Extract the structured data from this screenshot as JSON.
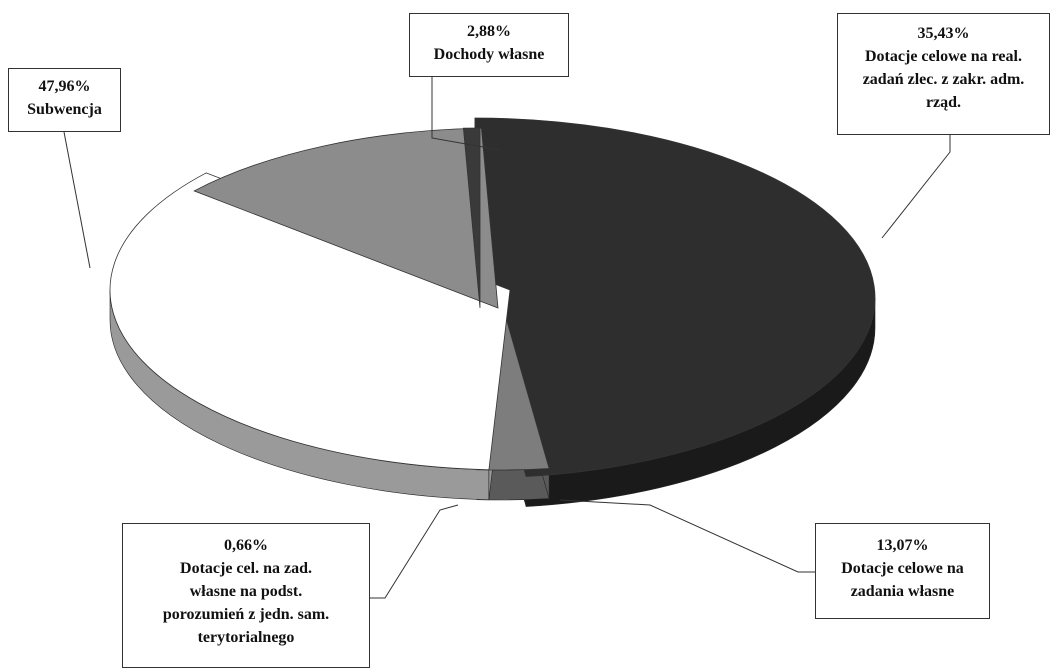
{
  "chart_data": {
    "type": "pie",
    "style": "3d-exploded",
    "title": "",
    "slices": [
      {
        "key": "subwencja",
        "value": 47.96,
        "percent_label": "47,96%",
        "label_lines": [
          "Subwencja"
        ],
        "color": "#2e2e2e",
        "side_color": "#1a1a1a"
      },
      {
        "key": "dochody",
        "value": 2.88,
        "percent_label": "2,88%",
        "label_lines": [
          "Dochody własne"
        ],
        "color": "#7d7d7d",
        "side_color": "#5a5a5a"
      },
      {
        "key": "dotacje-adm",
        "value": 35.43,
        "percent_label": "35,43%",
        "label_lines": [
          "Dotacje celowe na real.",
          "zadań zlec. z zakr. adm.",
          "rząd."
        ],
        "color": "#ffffff",
        "side_color": "#9a9a9a"
      },
      {
        "key": "dotacje-wlasne",
        "value": 13.07,
        "percent_label": "13,07%",
        "label_lines": [
          "Dotacje celowe na",
          "zadania własne"
        ],
        "color": "#8c8c8c",
        "side_color": "#6a6a6a"
      },
      {
        "key": "dotacje-porozumien",
        "value": 0.66,
        "percent_label": "0,66%",
        "label_lines": [
          "Dotacje cel. na zad.",
          "własne na podst.",
          "porozumień z jedn. sam.",
          "terytorialnego"
        ],
        "color": "#3a3a3a",
        "side_color": "#111111"
      }
    ],
    "legend": "none"
  }
}
